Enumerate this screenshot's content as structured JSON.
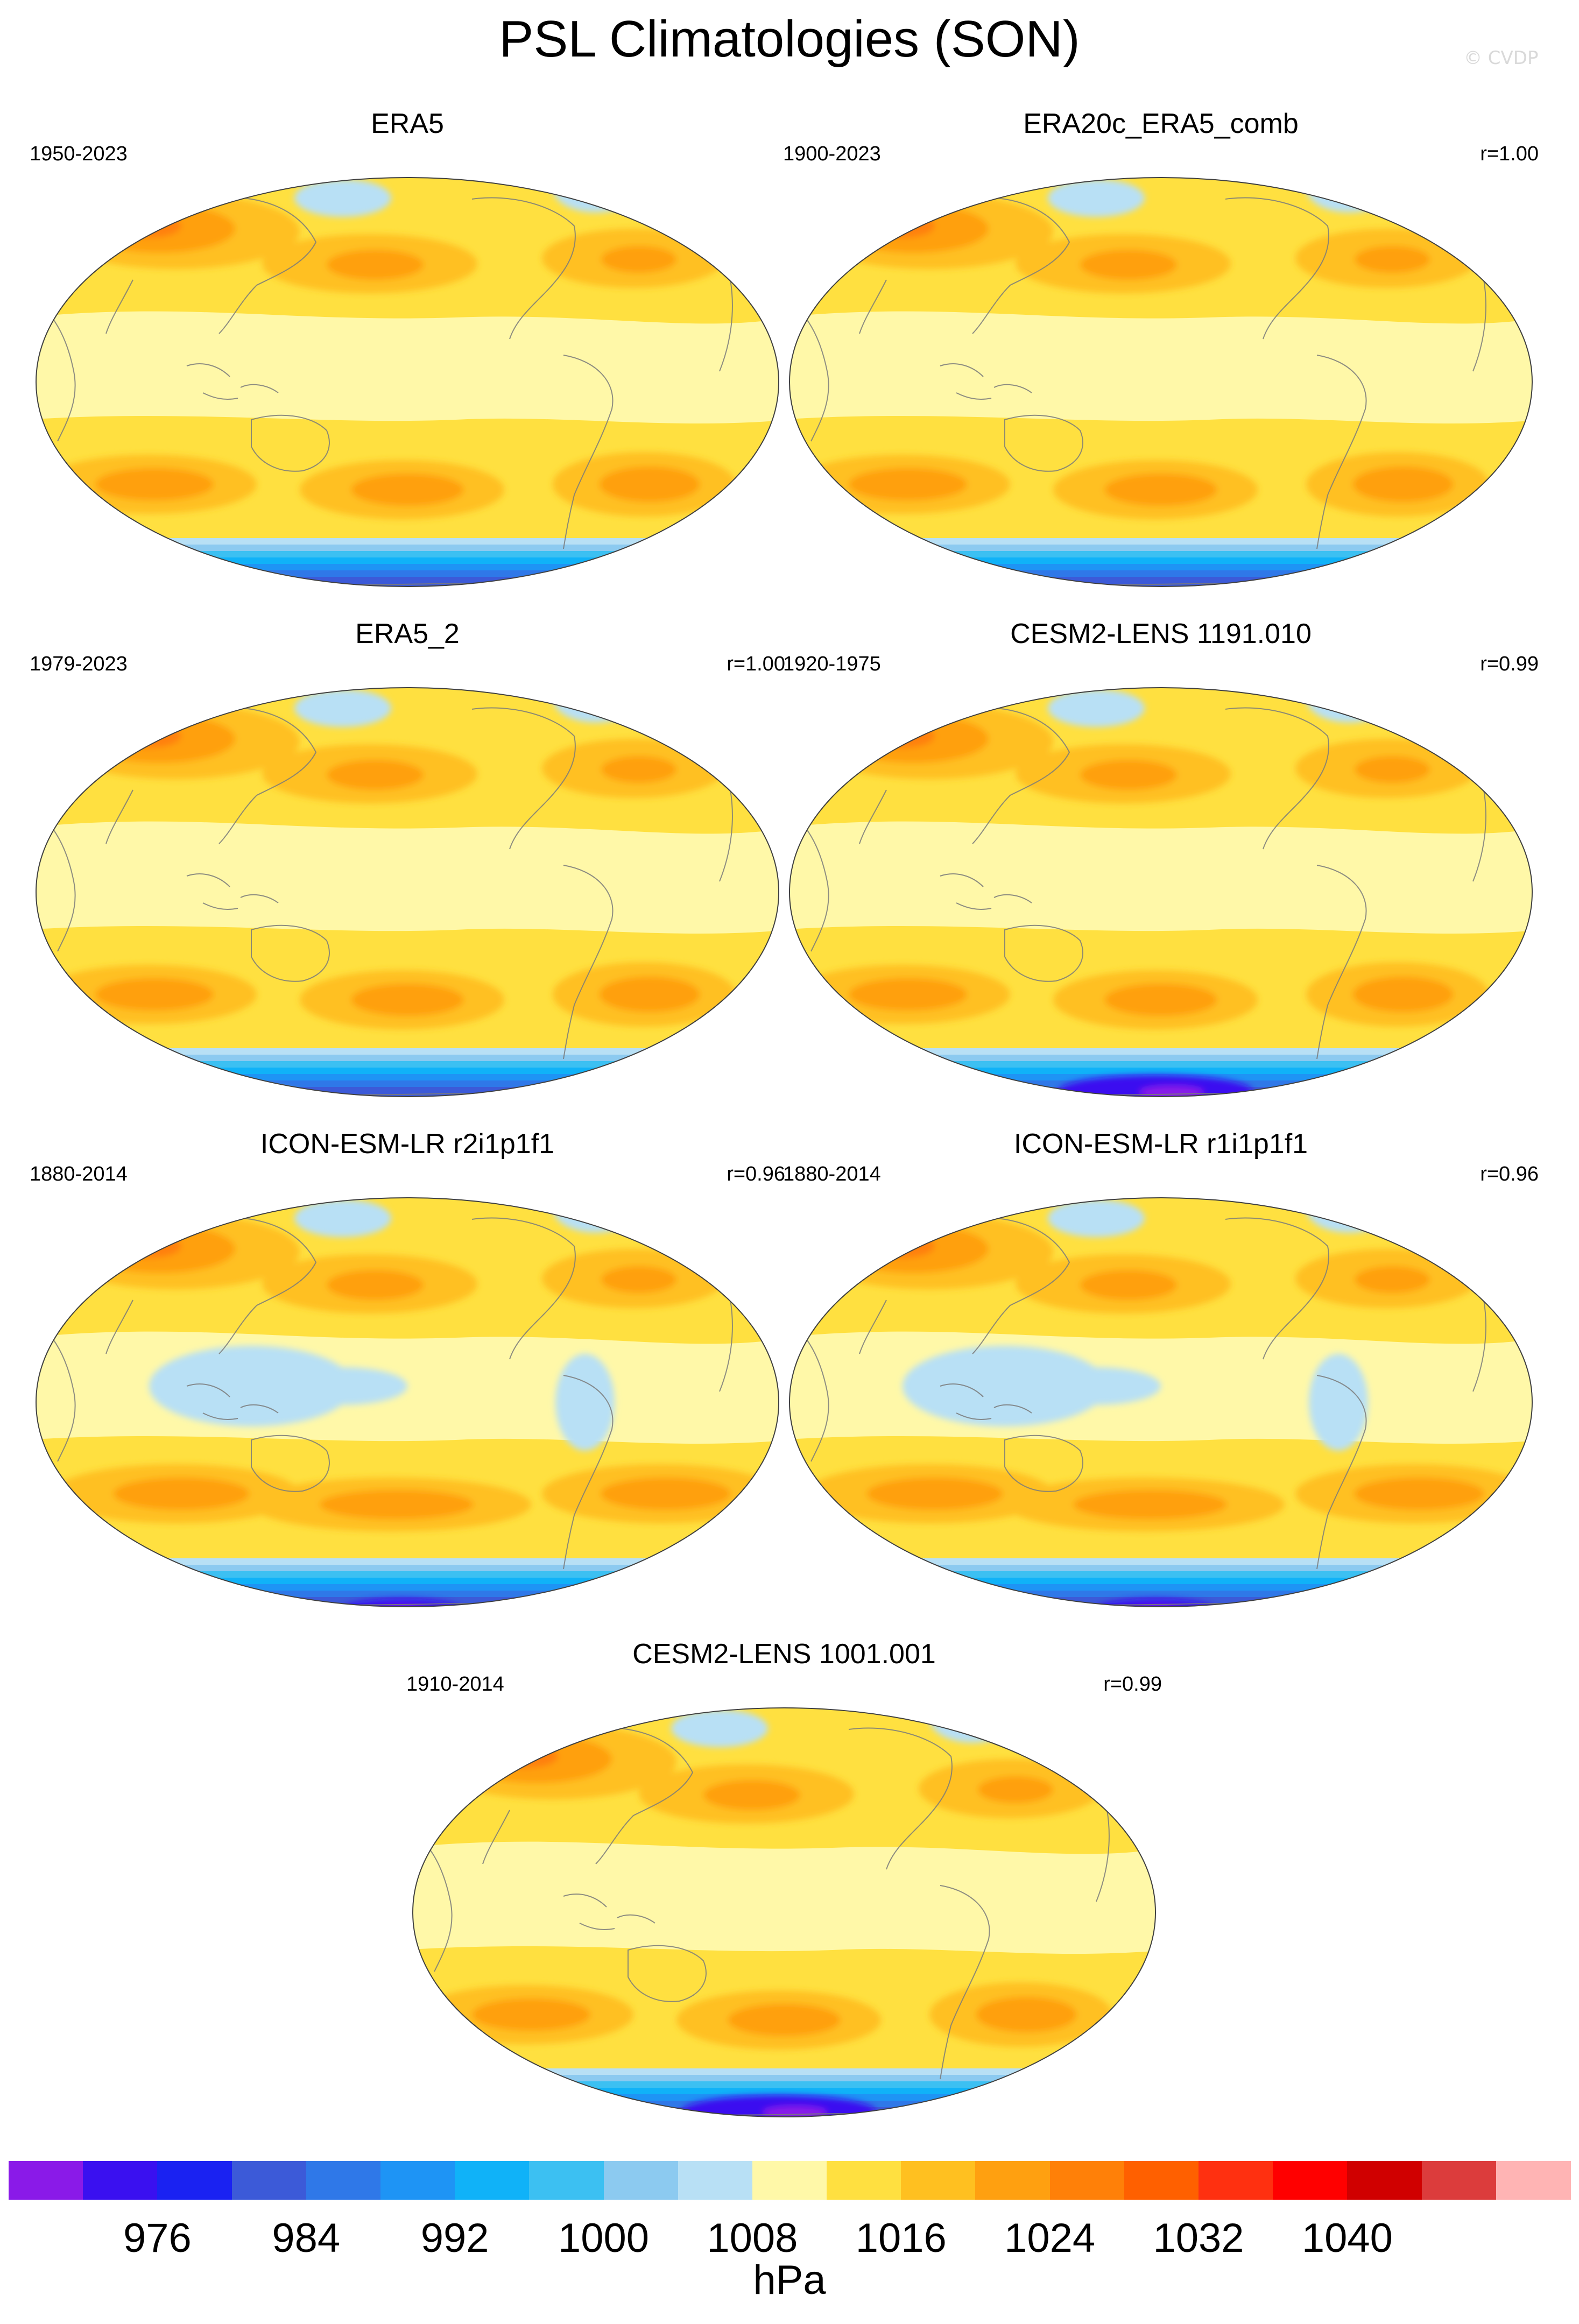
{
  "title": "PSL Climatologies (SON)",
  "credit": "© CVDP",
  "panels": [
    {
      "title": "ERA5",
      "period": "1950-2023",
      "r": ""
    },
    {
      "title": "ERA20c_ERA5_comb",
      "period": "1900-2023",
      "r": "r=1.00"
    },
    {
      "title": "ERA5_2",
      "period": "1979-2023",
      "r": "r=1.00"
    },
    {
      "title": "CESM2-LENS 1191.010",
      "period": "1920-1975",
      "r": "r=0.99"
    },
    {
      "title": "ICON-ESM-LR r2i1p1f1",
      "period": "1880-2014",
      "r": "r=0.96"
    },
    {
      "title": "ICON-ESM-LR r1i1p1f1",
      "period": "1880-2014",
      "r": "r=0.96"
    },
    {
      "title": "CESM2-LENS 1001.001",
      "period": "1910-2014",
      "r": "r=0.99"
    }
  ],
  "colorbar": {
    "units": "hPa",
    "labels": [
      "976",
      "984",
      "992",
      "1000",
      "1008",
      "1016",
      "1024",
      "1032",
      "1040"
    ],
    "colors": [
      "#8a1ae8",
      "#3a10f0",
      "#1a22f2",
      "#3c5ad8",
      "#2f78e8",
      "#1e94f5",
      "#10b2f8",
      "#3cc0f2",
      "#8ccaf0",
      "#b8e0f5",
      "#fff8a8",
      "#ffe040",
      "#ffc020",
      "#ffa010",
      "#ff8008",
      "#ff6000",
      "#ff3010",
      "#ff0000",
      "#d00000",
      "#dc3c3c",
      "#ffb4b4"
    ]
  }
}
